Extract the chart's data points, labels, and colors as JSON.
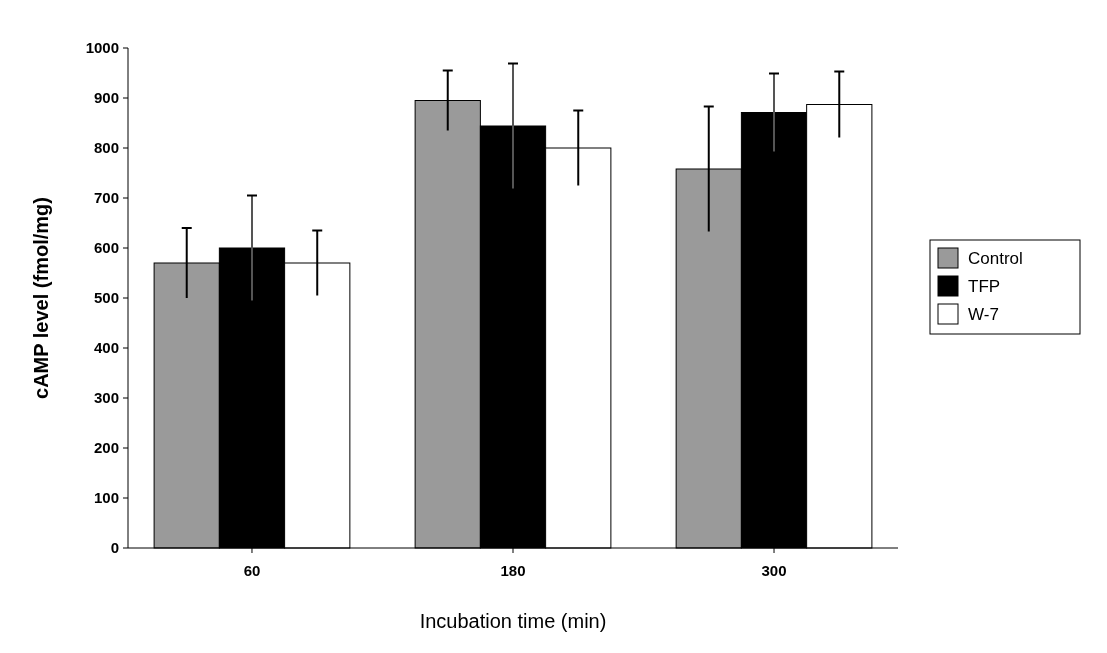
{
  "chart_data": {
    "type": "bar",
    "xlabel": "Incubation time (min)",
    "ylabel": "cAMP level (fmol/mg)",
    "categories": [
      "60",
      "180",
      "300"
    ],
    "series": [
      {
        "name": "Control",
        "color": "#9a9a9a",
        "values": [
          570,
          895,
          758
        ],
        "errors": [
          70,
          60,
          125
        ]
      },
      {
        "name": "TFP",
        "color": "#000000",
        "values": [
          600,
          844,
          871
        ],
        "errors": [
          105,
          125,
          78
        ]
      },
      {
        "name": "W-7",
        "color": "#ffffff",
        "values": [
          570,
          800,
          887
        ],
        "errors": [
          65,
          75,
          66
        ]
      }
    ],
    "ylim": [
      0,
      1000
    ],
    "yticks": [
      0,
      100,
      200,
      300,
      400,
      500,
      600,
      700,
      800,
      900,
      1000
    ],
    "grid": false,
    "legend": "right"
  }
}
